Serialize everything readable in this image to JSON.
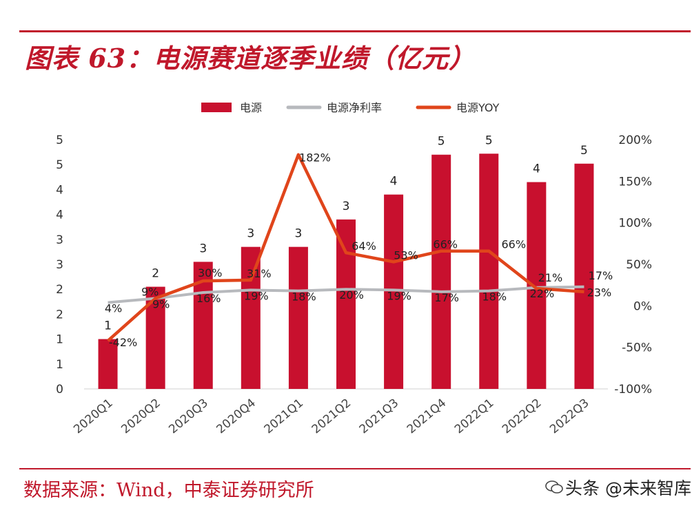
{
  "header": {
    "title": "图表 63：电源赛道逐季业绩（亿元）"
  },
  "footer": {
    "source": "数据来源：Wind，中泰证券研究所"
  },
  "watermark": {
    "text": "头条 @未来智库"
  },
  "colors": {
    "bar": "#c8102e",
    "yoy_line": "#e0451b",
    "margin_line": "#b7b9bd",
    "rule": "#c0182b"
  },
  "chart_data": {
    "type": "bar",
    "categories": [
      "2020Q1",
      "2020Q2",
      "2020Q3",
      "2020Q4",
      "2021Q1",
      "2021Q2",
      "2021Q3",
      "2021Q4",
      "2022Q1",
      "2022Q2",
      "2022Q3"
    ],
    "left_axis": {
      "ylim": [
        0,
        5
      ],
      "tick_labels": [
        "0",
        "1",
        "1",
        "2",
        "2",
        "3",
        "3",
        "4",
        "4",
        "5",
        "5"
      ]
    },
    "right_axis": {
      "ylim": [
        -1.0,
        2.0
      ],
      "tick_labels": [
        "-100%",
        "-50%",
        "0%",
        "50%",
        "100%",
        "150%",
        "200%"
      ]
    },
    "series": [
      {
        "name": "电源",
        "kind": "bar",
        "axis": "left",
        "values": [
          1.0,
          2.05,
          2.55,
          2.85,
          2.85,
          3.4,
          3.9,
          4.7,
          4.72,
          4.15,
          4.52
        ],
        "labels": [
          "1",
          "2",
          "3",
          "3",
          "3",
          "3",
          "4",
          "5",
          "5",
          "4",
          "5"
        ]
      },
      {
        "name": "电源净利率",
        "kind": "line",
        "axis": "right",
        "values": [
          0.04,
          0.09,
          0.16,
          0.19,
          0.18,
          0.2,
          0.19,
          0.17,
          0.18,
          0.22,
          0.23
        ],
        "labels": [
          "4%",
          "9%",
          "16%",
          "19%",
          "18%",
          "20%",
          "19%",
          "17%",
          "18%",
          "22%",
          "23%"
        ]
      },
      {
        "name": "电源YOY",
        "kind": "line",
        "axis": "right",
        "values": [
          -0.42,
          0.09,
          0.3,
          0.31,
          1.82,
          0.64,
          0.53,
          0.66,
          0.66,
          0.21,
          0.17
        ],
        "labels": [
          "-42%",
          "9%",
          "30%",
          "31%",
          "182%",
          "64%",
          "53%",
          "66%",
          "66%",
          "21%",
          "17%"
        ]
      }
    ]
  }
}
